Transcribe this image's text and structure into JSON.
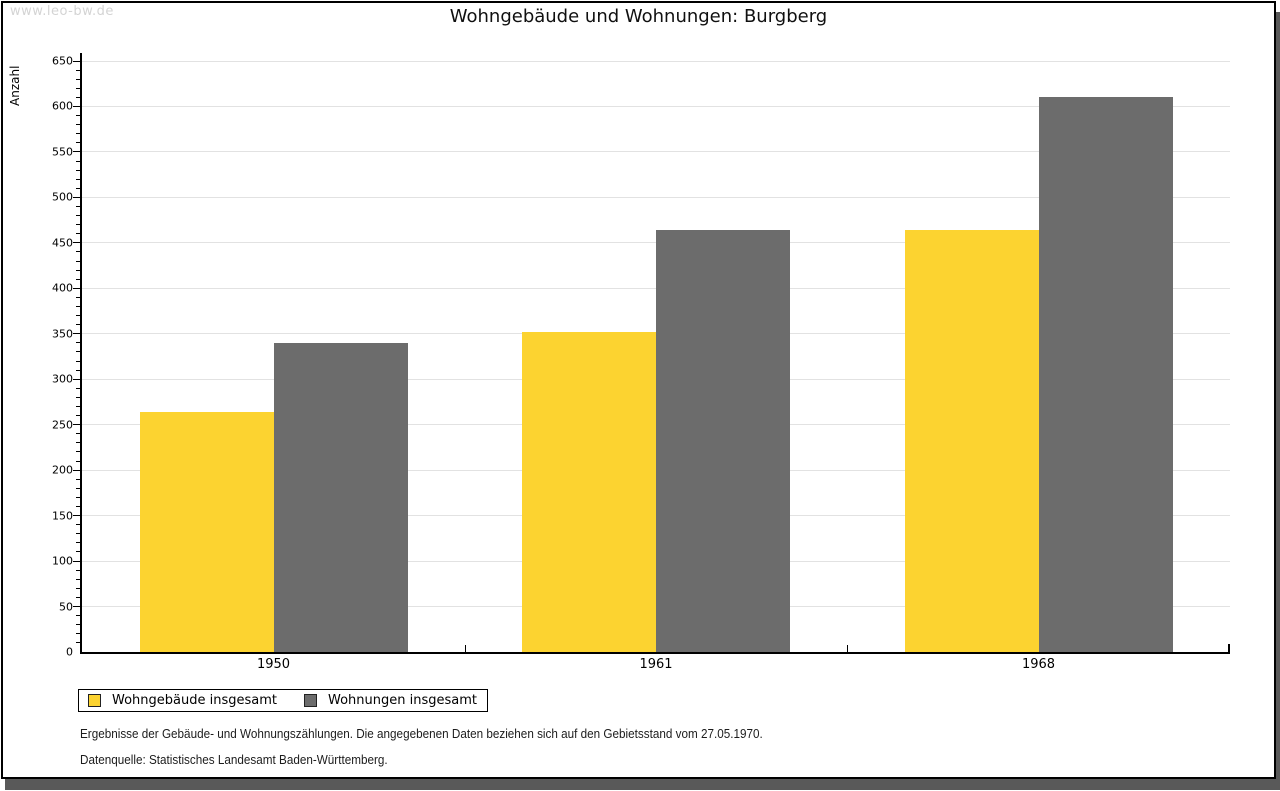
{
  "watermark": "www.leo-bw.de",
  "chart_data": {
    "type": "bar",
    "title": "Wohngebäude und Wohnungen: Burgberg",
    "ylabel": "Anzahl",
    "xlabel": "",
    "categories": [
      "1950",
      "1961",
      "1968"
    ],
    "series": [
      {
        "name": "Wohngebäude insgesamt",
        "color": "#FCD330",
        "values": [
          264,
          352,
          464
        ]
      },
      {
        "name": "Wohnungen insgesamt",
        "color": "#6C6C6C",
        "values": [
          340,
          464,
          610
        ]
      }
    ],
    "ylim": [
      0,
      650
    ],
    "ytick_step": 50,
    "ytick_minor_step": 10,
    "grid": "horizontal",
    "legend_position": "bottom-left"
  },
  "footer": {
    "note": "Ergebnisse der Gebäude- und Wohnungszählungen. Die angegebenen Daten beziehen sich auf den Gebietsstand vom 27.05.1970.",
    "source": "Datenquelle: Statistisches Landesamt Baden-Württemberg."
  },
  "colors": {
    "background": "#FFFFFF",
    "grid": "#E2E2E2",
    "axis": "#000000",
    "text": "#000000",
    "watermark": "#D4D4D4",
    "frame_border": "#000000",
    "shadow": "#595959"
  }
}
